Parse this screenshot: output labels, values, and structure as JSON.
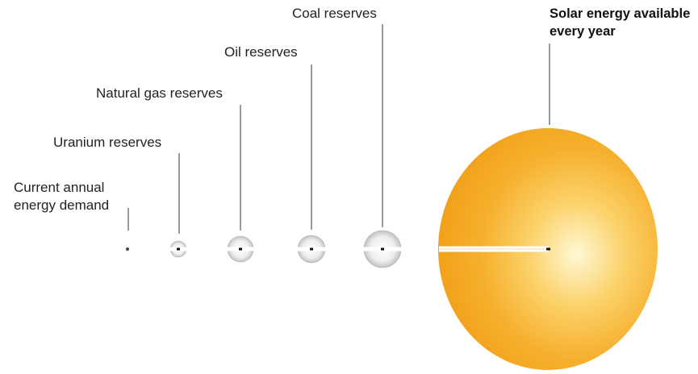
{
  "items": [
    {
      "id": "demand",
      "label": "Current annual energy demand",
      "label_lines": [
        "Current annual",
        "energy demand"
      ]
    },
    {
      "id": "uranium",
      "label": "Uranium reserves"
    },
    {
      "id": "natural_gas",
      "label": "Natural gas reserves"
    },
    {
      "id": "oil",
      "label": "Oil reserves"
    },
    {
      "id": "coal",
      "label": "Coal reserves"
    },
    {
      "id": "solar",
      "label": "Solar energy available every year",
      "label_lines": [
        "Solar energy available",
        "every year"
      ]
    }
  ],
  "colors": {
    "reserve_sphere": "#c8c8c8",
    "solar_sphere": "#f4a21c",
    "solar_highlight": "#fff7d0",
    "line": "#333333"
  }
}
